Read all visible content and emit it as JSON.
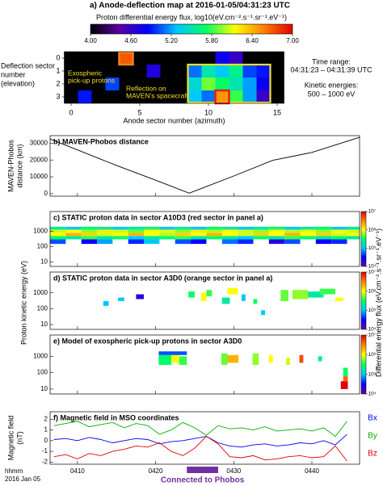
{
  "figure": {
    "energy_label": "Proton kinetic energy (eV)",
    "flux_label": "Differential energy flux (eV.cm⁻².s⁻¹.sr⁻¹.eV⁻¹)"
  },
  "chart_data": [
    {
      "type": "heatmap",
      "title": "a) Anode-deflection map at 2016-01-05/04:31:23  UTC",
      "colorbar_label": "Proton differential energy flux, log10(eV.cm⁻².s⁻¹.sr⁻¹.eV⁻¹)",
      "colormap": [
        "#000000",
        "#5a00a0",
        "#0000ff",
        "#00c8ff",
        "#00ff60",
        "#ffff00",
        "#ff8000",
        "#e00000"
      ],
      "zlim": [
        4,
        7
      ],
      "zticks": [
        {
          "value": 4,
          "label": "4.00"
        },
        {
          "value": 4.6,
          "label": "4.60"
        },
        {
          "value": 5.2,
          "label": "5.20"
        },
        {
          "value": 5.8,
          "label": "5.80"
        },
        {
          "value": 6.4,
          "label": "6.40"
        },
        {
          "value": 7,
          "label": "7.00"
        }
      ],
      "xlim": [
        -0.5,
        15.5
      ],
      "xticks": [
        0,
        5,
        10,
        15
      ],
      "ylim": [
        3.5,
        -0.5
      ],
      "yticks": [
        0,
        1,
        2,
        3
      ],
      "x_label": "Anode sector number (azimuth)",
      "y_label": [
        "Deflection sector",
        "number",
        "(elevation)"
      ],
      "cells": [
        [
          4,
          0,
          6.7
        ],
        [
          11,
          0,
          4.8
        ],
        [
          12,
          0,
          4.6
        ],
        [
          6,
          1,
          4.7
        ],
        [
          9,
          1,
          5.1
        ],
        [
          10,
          1,
          5.5
        ],
        [
          11,
          1,
          5.3
        ],
        [
          12,
          1,
          5.6
        ],
        [
          13,
          1,
          5.0
        ],
        [
          14,
          1,
          4.9
        ],
        [
          3,
          2,
          5.0
        ],
        [
          9,
          2,
          5.4
        ],
        [
          10,
          2,
          5.9
        ],
        [
          11,
          2,
          5.7
        ],
        [
          12,
          2,
          5.5
        ],
        [
          13,
          2,
          5.2
        ],
        [
          14,
          2,
          4.8
        ],
        [
          1,
          3,
          4.9
        ],
        [
          9,
          3,
          5.3
        ],
        [
          10,
          3,
          5.1
        ],
        [
          11,
          3,
          6.5
        ],
        [
          12,
          3,
          5.8
        ],
        [
          13,
          3,
          5.2
        ],
        [
          14,
          3,
          4.6
        ]
      ],
      "annotations": [
        [
          "Exospheric",
          "pick-up protons"
        ],
        [
          "Reflection on",
          "MAVEN's spacecraft"
        ]
      ],
      "info": [
        "Time range:",
        "04:31:23 – 04:31:39 UTC",
        "Kinetic energies:",
        "500 – 1000 eV"
      ]
    },
    {
      "type": "line",
      "title": "b) MAVEN-Phobos  distance",
      "y_label": [
        "MAVEN-Phobos",
        "distance (km)"
      ],
      "xlim": [
        246.5,
        286.1
      ],
      "xticks": [
        250,
        260,
        270,
        280
      ],
      "ylim": [
        -1500,
        34500
      ],
      "yticks": [
        0,
        10000,
        20000,
        30000
      ],
      "x": [
        246.5,
        250,
        255,
        260,
        264.3,
        270,
        275,
        280,
        286.1
      ],
      "series": [
        {
          "color": "#000000",
          "values": [
            32500,
            26000,
            16800,
            8000,
            300,
            10500,
            19800,
            24500,
            33500
          ]
        }
      ]
    },
    {
      "type": "spectrogram",
      "title": "c) STATIC proton data in sector A10D3 (red sector in panel a)",
      "xlim": [
        246.5,
        286.1
      ],
      "xticks": [
        250,
        260,
        270,
        280
      ],
      "ylim": [
        5,
        20000
      ],
      "yticks": [
        10,
        100,
        1000
      ],
      "log": true,
      "colormap": [
        "#6a00a8",
        "#0000ff",
        "#00c8ff",
        "#00ff60",
        "#ffff00",
        "#ff8000",
        "#e00000"
      ],
      "zlim": [
        10000.0,
        10000000.0
      ],
      "zticks": [
        {
          "value": 10000.0,
          "label": "10⁴"
        },
        {
          "value": 100000.0,
          "label": "10⁵"
        },
        {
          "value": 1000000.0,
          "label": "10⁶"
        },
        {
          "value": 10000000.0,
          "label": "10⁷"
        }
      ],
      "time_edges": [
        246.5,
        248.5,
        250.5,
        252.5,
        254.5,
        256.5,
        258.5,
        260.5,
        262.5,
        264.5,
        266.5,
        268.5,
        270.5,
        272.5,
        274.5,
        276.5,
        278.5,
        280.5,
        282.5,
        284.5,
        286.1
      ],
      "energy_edges": [
        150,
        300,
        500,
        800,
        1300,
        2000
      ],
      "values": [
        [
          50000.0,
          null,
          30000.0,
          80000.0,
          null,
          40000.0,
          100000.0,
          null,
          50000.0,
          30000.0,
          null,
          60000.0,
          40000.0,
          null,
          20000.0,
          50000.0,
          null,
          30000.0,
          40000.0,
          null
        ],
        [
          300000.0,
          200000.0,
          400000.0,
          200000.0,
          300000.0,
          100000.0,
          200000.0,
          300000.0,
          400000.0,
          200000.0,
          300000.0,
          200000.0,
          100000.0,
          300000.0,
          200000.0,
          400000.0,
          300000.0,
          200000.0,
          300000.0,
          200000.0
        ],
        [
          1000000.0,
          2000000.0,
          1500000.0,
          800000.0,
          1000000.0,
          2000000.0,
          1000000.0,
          700000.0,
          1500000.0,
          1000000.0,
          2000000.0,
          1000000.0,
          800000.0,
          1500000.0,
          1000000.0,
          2000000.0,
          1000000.0,
          1500000.0,
          800000.0,
          1000000.0
        ],
        [
          800000.0,
          1000000.0,
          600000.0,
          1200000.0,
          800000.0,
          500000.0,
          1000000.0,
          900000.0,
          600000.0,
          1200000.0,
          700000.0,
          1000000.0,
          800000.0,
          600000.0,
          1000000.0,
          700000.0,
          900000.0,
          600000.0,
          1000000.0,
          800000.0
        ],
        [
          200000.0,
          100000.0,
          300000.0,
          200000.0,
          100000.0,
          200000.0,
          300000.0,
          100000.0,
          200000.0,
          100000.0,
          300000.0,
          200000.0,
          100000.0,
          200000.0,
          300000.0,
          100000.0,
          200000.0,
          300000.0,
          100000.0,
          200000.0
        ]
      ]
    },
    {
      "type": "spectrogram",
      "title": "d) STATIC proton data in sector A3D0 (orange sector in panel a)",
      "xlim": [
        246.5,
        286.1
      ],
      "xticks": [
        250,
        260,
        270,
        280
      ],
      "ylim": [
        5,
        20000
      ],
      "yticks": [
        10,
        100,
        1000
      ],
      "log": true,
      "colormap": [
        "#6a00a8",
        "#0000ff",
        "#00c8ff",
        "#00ff60",
        "#ffff00",
        "#ff8000",
        "#e00000"
      ],
      "zlim": [
        10000.0,
        10000000.0
      ],
      "zticks": [
        {
          "value": 10000.0,
          "label": "10⁴"
        },
        {
          "value": 100000.0,
          "label": "10⁵"
        },
        {
          "value": 1000000.0,
          "label": "10⁶"
        },
        {
          "value": 10000000.0,
          "label": "10⁷"
        }
      ],
      "patches": [
        [
          253.3,
          254.0,
          150,
          300,
          100000.0
        ],
        [
          255.2,
          256.0,
          300,
          500,
          100000.0
        ],
        [
          257.5,
          258.5,
          400,
          800,
          20000.0
        ],
        [
          264.2,
          265.0,
          500,
          1200,
          300000.0
        ],
        [
          265.8,
          266.5,
          300,
          1000,
          1000000.0
        ],
        [
          266.5,
          267.2,
          600,
          1500,
          400000.0
        ],
        [
          268.5,
          269.5,
          200,
          500,
          200000.0
        ],
        [
          269.2,
          270.5,
          800,
          2000,
          1000000.0
        ],
        [
          271.0,
          271.5,
          300,
          800,
          100000.0
        ],
        [
          272.5,
          273.0,
          200,
          400,
          300000.0
        ],
        [
          273.5,
          274.0,
          40,
          80,
          100000.0
        ],
        [
          276.0,
          277.0,
          300,
          1500,
          500000.0
        ],
        [
          277.5,
          279.5,
          400,
          1500,
          600000.0
        ],
        [
          279.5,
          281.5,
          500,
          1200,
          200000.0
        ],
        [
          281.0,
          283.0,
          800,
          1800,
          400000.0
        ],
        [
          283.0,
          284.0,
          300,
          500,
          1000000.0
        ]
      ]
    },
    {
      "type": "spectrogram",
      "title": "e) Model of exospheric pick-up protons in sector A3D0",
      "xlim": [
        246.5,
        286.1
      ],
      "xticks": [
        250,
        260,
        270,
        280
      ],
      "ylim": [
        5,
        20000
      ],
      "yticks": [
        10,
        100,
        1000
      ],
      "log": true,
      "colormap": [
        "#6a00a8",
        "#0000ff",
        "#00c8ff",
        "#00ff60",
        "#ffff00",
        "#ff8000",
        "#e00000"
      ],
      "zlim": [
        10000.0,
        10000000.0
      ],
      "zticks": [
        {
          "value": 10000.0,
          "label": "10⁴"
        },
        {
          "value": 100000.0,
          "label": "10⁵"
        },
        {
          "value": 1000000.0,
          "label": "10⁶"
        },
        {
          "value": 10000000.0,
          "label": "10⁷"
        }
      ],
      "patches": [
        [
          260.4,
          262.0,
          300,
          1200,
          300000.0
        ],
        [
          262.0,
          263.0,
          400,
          1500,
          1000000.0
        ],
        [
          263.0,
          264.0,
          300,
          1000,
          400000.0
        ],
        [
          260.4,
          264.0,
          1200,
          2000,
          50000.0
        ],
        [
          268.4,
          269.2,
          300,
          1500,
          500000.0
        ],
        [
          269.2,
          270.6,
          400,
          1200,
          2000000.0
        ],
        [
          272.4,
          273.2,
          300,
          1500,
          600000.0
        ],
        [
          274.5,
          275.0,
          400,
          1200,
          1000000.0
        ],
        [
          276.7,
          277.2,
          300,
          800,
          800000.0
        ],
        [
          278.4,
          278.9,
          400,
          1200,
          5000000.0
        ],
        [
          280.8,
          281.3,
          500,
          1000,
          200000.0
        ],
        [
          284.0,
          284.6,
          60,
          200,
          300000.0
        ],
        [
          284.0,
          284.6,
          30,
          60,
          4000000.0
        ],
        [
          283.7,
          284.6,
          10,
          30,
          10000000.0
        ]
      ]
    },
    {
      "type": "line",
      "title": "f) Magnetic field in MSO coordinates",
      "y_label": [
        "Magnetic field",
        "(nT)"
      ],
      "xlim": [
        246.5,
        286.1
      ],
      "xticks": [
        {
          "value": 250,
          "label": "0410"
        },
        {
          "value": 260,
          "label": "0420"
        },
        {
          "value": 270,
          "label": "0430"
        },
        {
          "value": 280,
          "label": "0440"
        }
      ],
      "x_label": [
        "hhmm",
        "2016 Jan 05"
      ],
      "ylim": [
        -2.2,
        2.7
      ],
      "yticks": [
        -2,
        -1,
        0,
        1,
        2
      ],
      "interval": {
        "label": "Connected to Phobos",
        "x": [
          264,
          268
        ],
        "color": "#7030a0"
      },
      "x": [
        247,
        248.5,
        250,
        251.5,
        253,
        254.5,
        256,
        257.5,
        259,
        260.5,
        262,
        263.5,
        265,
        266.5,
        268,
        269.5,
        271,
        272.5,
        274,
        275.5,
        277,
        278.5,
        280,
        281.5,
        283,
        284.5
      ],
      "series": [
        {
          "name": "Bx",
          "color": "#0000ee",
          "values": [
            0.1,
            0.2,
            0.0,
            0.3,
            0.1,
            -0.2,
            0.0,
            0.2,
            0.1,
            -0.3,
            -0.1,
            0.0,
            0.2,
            0.4,
            -0.2,
            -0.5,
            -0.6,
            -0.4,
            -0.3,
            -0.5,
            -0.4,
            -0.2,
            -0.3,
            0.0,
            -0.4,
            0.6
          ]
        },
        {
          "name": "By",
          "color": "#00b000",
          "values": [
            1.4,
            1.6,
            1.8,
            1.3,
            1.5,
            1.7,
            1.2,
            1.6,
            1.4,
            0.6,
            1.0,
            1.7,
            1.2,
            0.5,
            1.4,
            1.1,
            1.2,
            1.0,
            1.3,
            0.9,
            1.0,
            1.1,
            0.9,
            1.2,
            0.4,
            1.8
          ]
        },
        {
          "name": "Bz",
          "color": "#e00000",
          "values": [
            -1.5,
            -1.3,
            -1.7,
            -1.2,
            -1.4,
            -1.0,
            -0.8,
            -0.5,
            -0.6,
            -0.2,
            -1.0,
            -1.4,
            -0.7,
            0.4,
            -0.3,
            -1.5,
            -1.6,
            -1.4,
            -1.8,
            -1.7,
            -1.5,
            -1.4,
            -1.6,
            -1.5,
            -0.5,
            -1.9
          ]
        }
      ]
    }
  ]
}
